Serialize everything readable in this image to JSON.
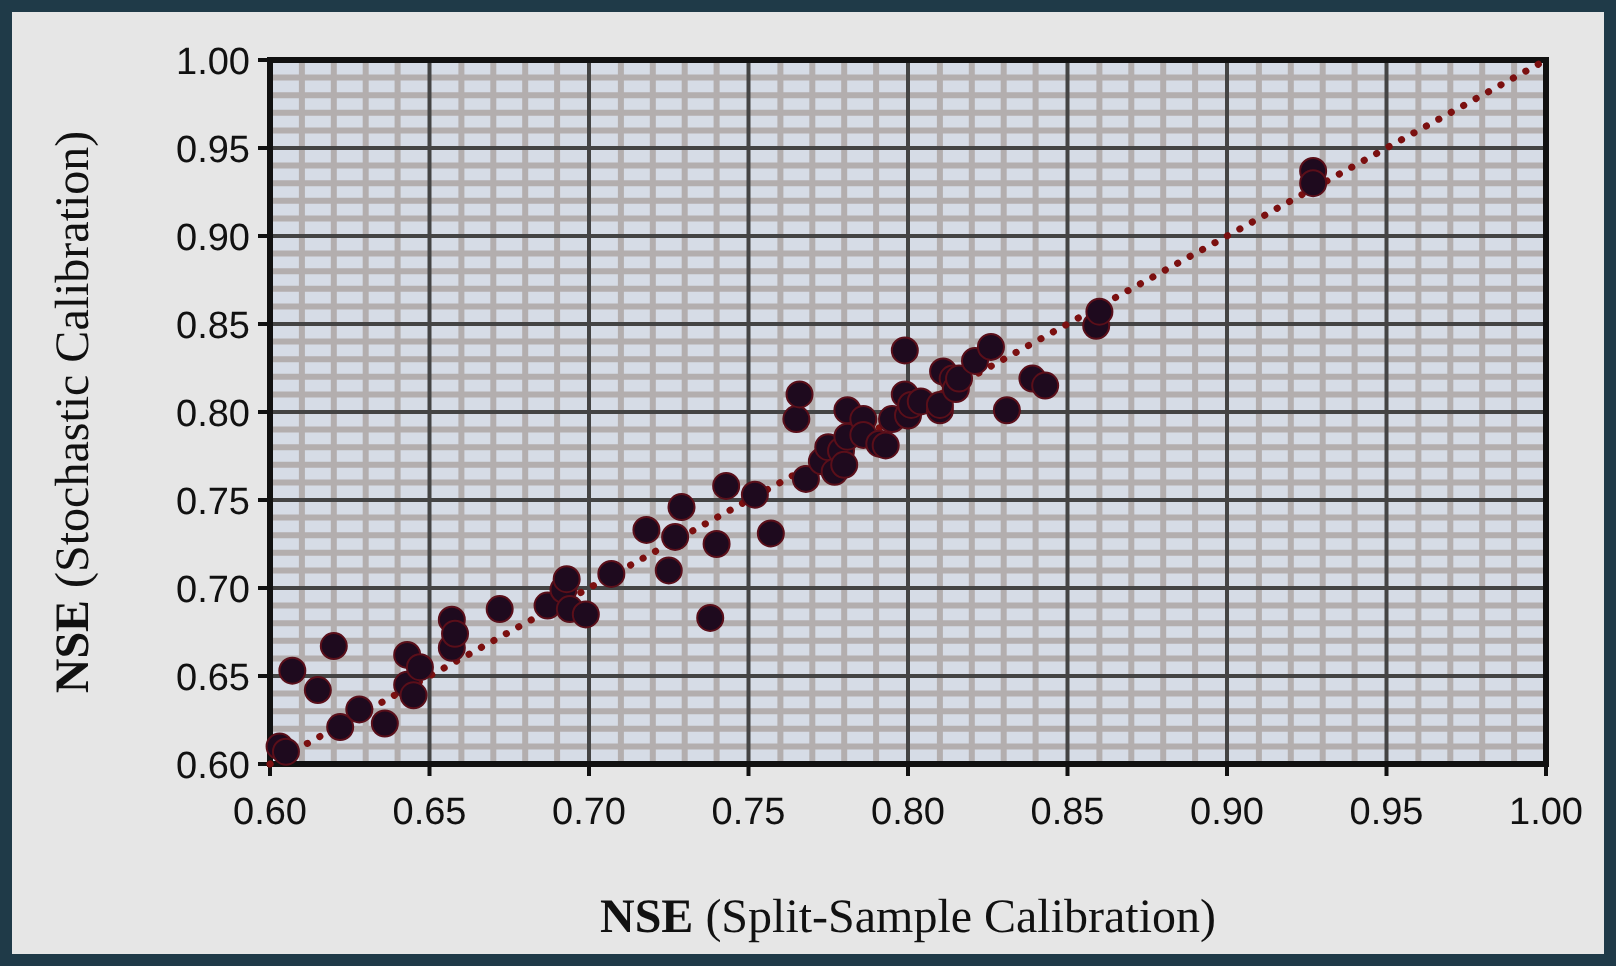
{
  "chart_data": {
    "type": "scatter",
    "xlabel": "NSE (Split-Sample Calibration)",
    "ylabel": "NSE (Stochastic Calibration)",
    "xlim": [
      0.6,
      1.0
    ],
    "ylim": [
      0.6,
      1.0
    ],
    "xticks": [
      {
        "value": 0.6,
        "label": "0.60"
      },
      {
        "value": 0.65,
        "label": "0.65"
      },
      {
        "value": 0.7,
        "label": "0.70"
      },
      {
        "value": 0.75,
        "label": "0.75"
      },
      {
        "value": 0.8,
        "label": "0.80"
      },
      {
        "value": 0.85,
        "label": "0.85"
      },
      {
        "value": 0.9,
        "label": "0.90"
      },
      {
        "value": 0.95,
        "label": "0.95"
      },
      {
        "value": 1.0,
        "label": "1.00"
      }
    ],
    "yticks": [
      {
        "value": 0.6,
        "label": "0.60"
      },
      {
        "value": 0.65,
        "label": "0.65"
      },
      {
        "value": 0.7,
        "label": "0.70"
      },
      {
        "value": 0.75,
        "label": "0.75"
      },
      {
        "value": 0.8,
        "label": "0.80"
      },
      {
        "value": 0.85,
        "label": "0.85"
      },
      {
        "value": 0.9,
        "label": "0.90"
      },
      {
        "value": 0.95,
        "label": "0.95"
      },
      {
        "value": 1.0,
        "label": "1.00"
      }
    ],
    "grid": true,
    "series": [
      {
        "color": "#1e0a1e",
        "marker": "circle",
        "x": [
          0.603,
          0.605,
          0.607,
          0.615,
          0.62,
          0.622,
          0.628,
          0.636,
          0.643,
          0.643,
          0.645,
          0.647,
          0.657,
          0.657,
          0.658,
          0.672,
          0.687,
          0.692,
          0.693,
          0.694,
          0.699,
          0.707,
          0.718,
          0.725,
          0.727,
          0.729,
          0.738,
          0.74,
          0.743,
          0.752,
          0.757,
          0.765,
          0.766,
          0.768,
          0.773,
          0.775,
          0.777,
          0.779,
          0.78,
          0.781,
          0.781,
          0.786,
          0.786,
          0.791,
          0.793,
          0.795,
          0.799,
          0.799,
          0.8,
          0.801,
          0.804,
          0.81,
          0.81,
          0.811,
          0.814,
          0.815,
          0.816,
          0.821,
          0.826,
          0.831,
          0.839,
          0.843,
          0.859,
          0.86,
          0.927,
          0.927
        ],
        "values": [
          0.61,
          0.607,
          0.653,
          0.642,
          0.667,
          0.621,
          0.631,
          0.623,
          0.662,
          0.645,
          0.639,
          0.655,
          0.682,
          0.666,
          0.674,
          0.688,
          0.69,
          0.699,
          0.705,
          0.688,
          0.685,
          0.708,
          0.733,
          0.71,
          0.729,
          0.746,
          0.683,
          0.725,
          0.758,
          0.753,
          0.731,
          0.796,
          0.81,
          0.762,
          0.772,
          0.78,
          0.766,
          0.778,
          0.77,
          0.801,
          0.786,
          0.796,
          0.787,
          0.782,
          0.781,
          0.796,
          0.835,
          0.81,
          0.798,
          0.804,
          0.806,
          0.801,
          0.804,
          0.823,
          0.819,
          0.813,
          0.819,
          0.829,
          0.837,
          0.801,
          0.819,
          0.815,
          0.849,
          0.857,
          0.937,
          0.93
        ]
      },
      {
        "type": "line",
        "color": "#7b1010",
        "line_style": "dotted",
        "x": [
          0.6,
          1.0
        ],
        "values": [
          0.6,
          1.0
        ]
      }
    ]
  }
}
